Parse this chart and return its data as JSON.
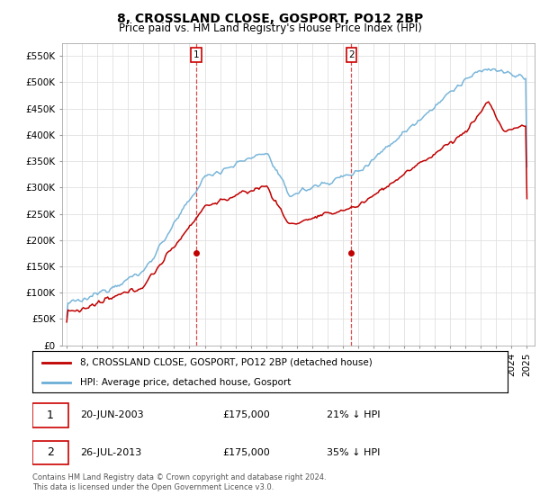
{
  "title": "8, CROSSLAND CLOSE, GOSPORT, PO12 2BP",
  "subtitle": "Price paid vs. HM Land Registry's House Price Index (HPI)",
  "ylim": [
    0,
    575000
  ],
  "yticks": [
    0,
    50000,
    100000,
    150000,
    200000,
    250000,
    300000,
    350000,
    400000,
    450000,
    500000,
    550000
  ],
  "ytick_labels": [
    "£0",
    "£50K",
    "£100K",
    "£150K",
    "£200K",
    "£250K",
    "£300K",
    "£350K",
    "£400K",
    "£450K",
    "£500K",
    "£550K"
  ],
  "hpi_color": "#6baed6",
  "price_color": "#c00000",
  "marker1_year": 2003.46,
  "marker1_price": 175000,
  "marker2_year": 2013.56,
  "marker2_price": 175000,
  "legend_line1": "8, CROSSLAND CLOSE, GOSPORT, PO12 2BP (detached house)",
  "legend_line2": "HPI: Average price, detached house, Gosport",
  "annotation1_date": "20-JUN-2003",
  "annotation1_price": "£175,000",
  "annotation1_hpi": "21% ↓ HPI",
  "annotation2_date": "26-JUL-2013",
  "annotation2_price": "£175,000",
  "annotation2_hpi": "35% ↓ HPI",
  "footer": "Contains HM Land Registry data © Crown copyright and database right 2024.\nThis data is licensed under the Open Government Licence v3.0.",
  "background_color": "#ffffff",
  "grid_color": "#e0e0e0",
  "title_fontsize": 10,
  "subtitle_fontsize": 8.5,
  "tick_fontsize": 7.5
}
